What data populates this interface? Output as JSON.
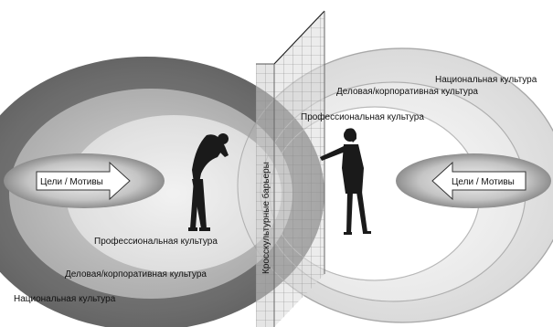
{
  "labels": {
    "left": {
      "professional": "Профессиональная культура",
      "business": "Деловая/корпоративная культура",
      "national": "Национальная культура",
      "goals": "Цели / Мотивы"
    },
    "right": {
      "national": "Национальная культура",
      "business": "Деловая/корпоративная культура",
      "professional": "Профессиональная культура",
      "goals": "Цели / Мотивы"
    },
    "barrier": "Кросскультурные барьеры"
  }
}
